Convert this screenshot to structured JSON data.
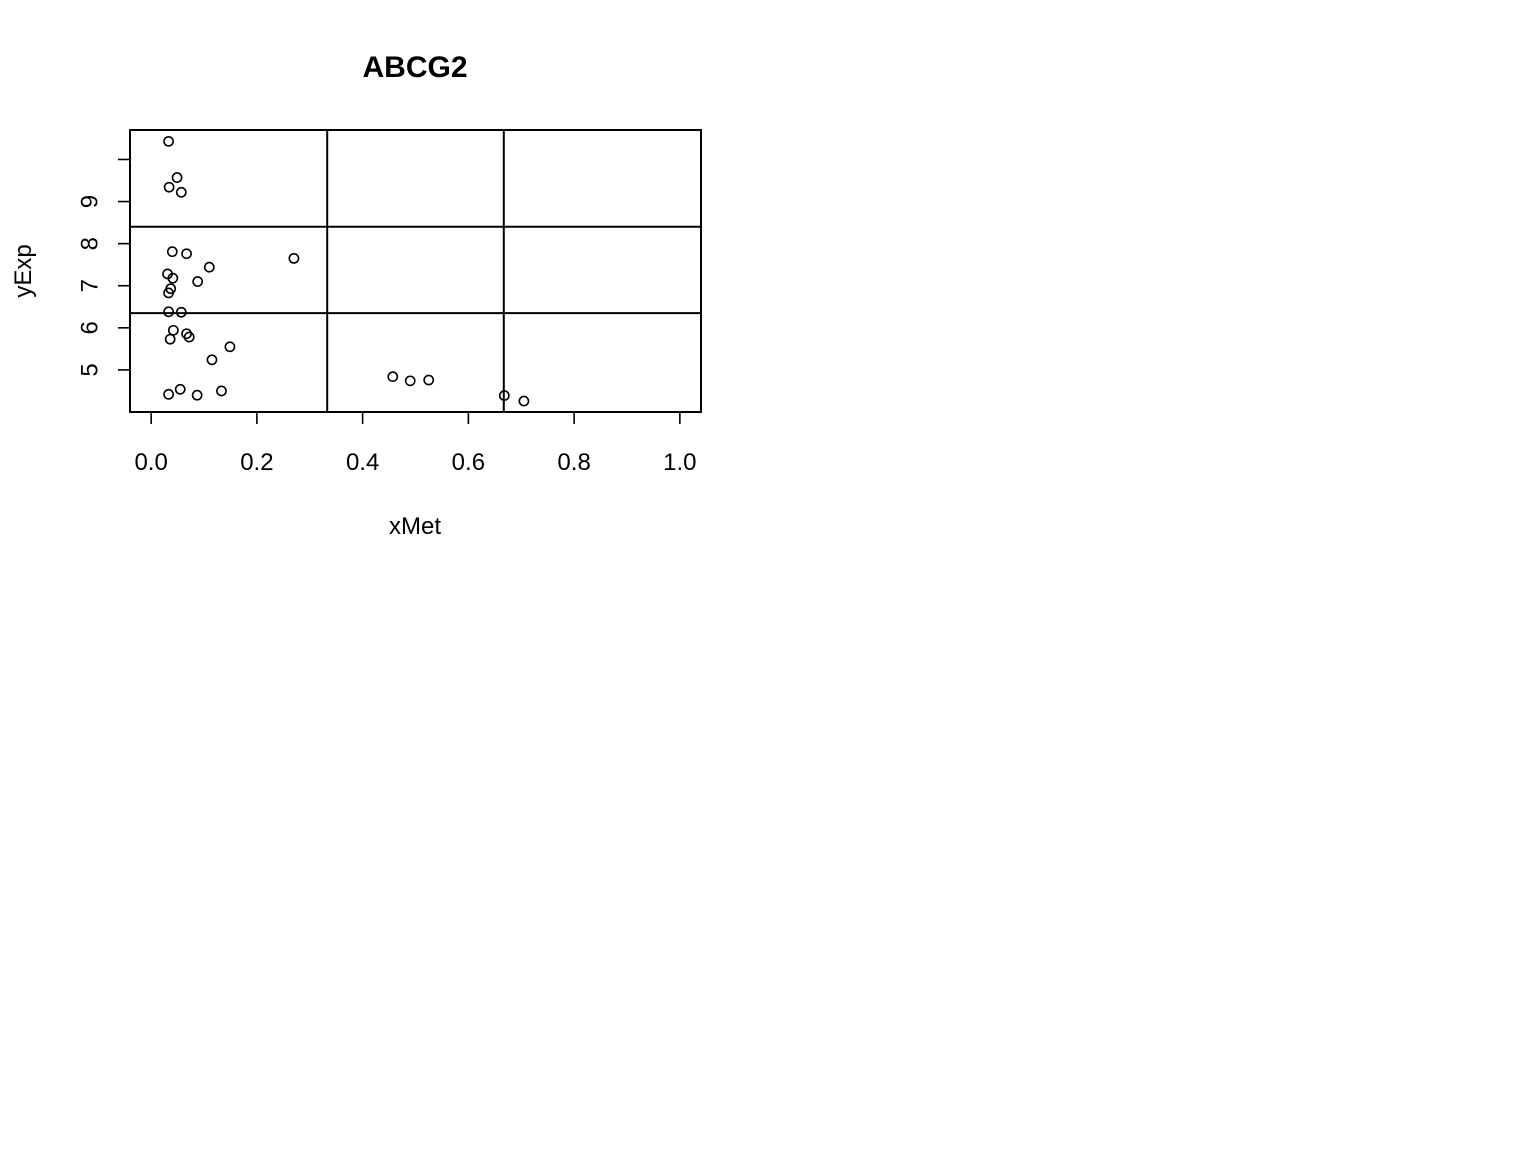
{
  "chart_data": {
    "type": "scatter",
    "title": "ABCG2",
    "xlabel": "xMet",
    "ylabel": "yExp",
    "xlim": [
      -0.04,
      1.04
    ],
    "ylim": [
      4.0,
      10.7
    ],
    "x_ticks": [
      0.0,
      0.2,
      0.4,
      0.6,
      0.8,
      1.0
    ],
    "x_tick_labels": [
      "0.0",
      "0.2",
      "0.4",
      "0.6",
      "0.8",
      "1.0"
    ],
    "y_ticks": [
      5,
      6,
      7,
      8,
      9
    ],
    "y_tick_labels": [
      "5",
      "6",
      "7",
      "8",
      "9"
    ],
    "vertical_dividers": [
      0.333,
      0.667
    ],
    "horizontal_dividers": [
      6.35,
      8.4
    ],
    "grid": false,
    "points": [
      {
        "x": 0.033,
        "y": 10.43
      },
      {
        "x": 0.049,
        "y": 9.57
      },
      {
        "x": 0.034,
        "y": 9.34
      },
      {
        "x": 0.057,
        "y": 9.22
      },
      {
        "x": 0.04,
        "y": 7.81
      },
      {
        "x": 0.067,
        "y": 7.76
      },
      {
        "x": 0.27,
        "y": 7.65
      },
      {
        "x": 0.11,
        "y": 7.44
      },
      {
        "x": 0.031,
        "y": 7.28
      },
      {
        "x": 0.041,
        "y": 7.18
      },
      {
        "x": 0.088,
        "y": 7.1
      },
      {
        "x": 0.037,
        "y": 6.93
      },
      {
        "x": 0.033,
        "y": 6.83
      },
      {
        "x": 0.033,
        "y": 6.38
      },
      {
        "x": 0.057,
        "y": 6.37
      },
      {
        "x": 0.042,
        "y": 5.94
      },
      {
        "x": 0.067,
        "y": 5.86
      },
      {
        "x": 0.072,
        "y": 5.78
      },
      {
        "x": 0.036,
        "y": 5.73
      },
      {
        "x": 0.149,
        "y": 5.55
      },
      {
        "x": 0.115,
        "y": 5.24
      },
      {
        "x": 0.457,
        "y": 4.84
      },
      {
        "x": 0.49,
        "y": 4.74
      },
      {
        "x": 0.525,
        "y": 4.76
      },
      {
        "x": 0.055,
        "y": 4.54
      },
      {
        "x": 0.133,
        "y": 4.5
      },
      {
        "x": 0.033,
        "y": 4.42
      },
      {
        "x": 0.087,
        "y": 4.4
      },
      {
        "x": 0.668,
        "y": 4.39
      },
      {
        "x": 0.705,
        "y": 4.26
      }
    ]
  }
}
